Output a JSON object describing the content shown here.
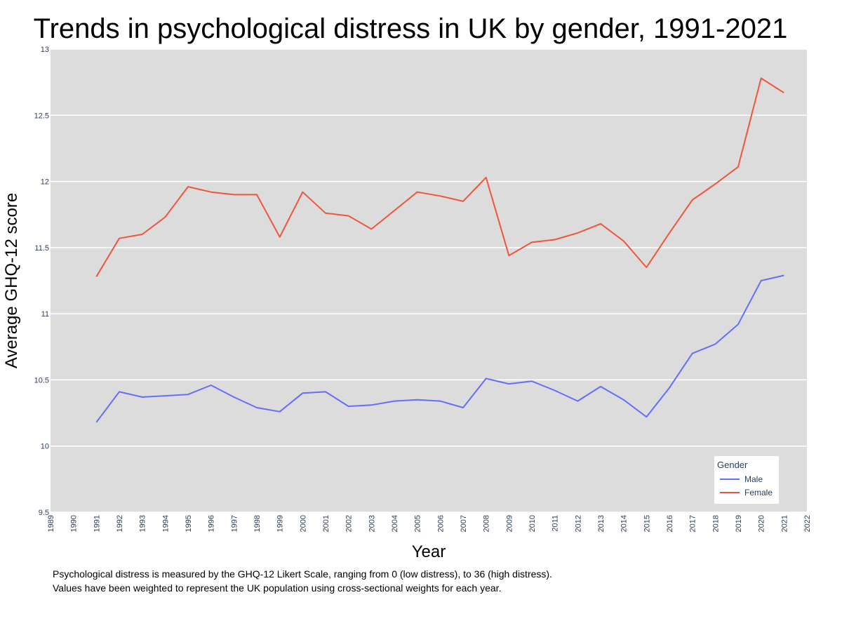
{
  "chart_data": {
    "type": "line",
    "title": "Trends in psychological distress in UK by gender, 1991-2021",
    "xlabel": "Year",
    "ylabel": "Average GHQ-12 score",
    "xlim": [
      1989,
      2022
    ],
    "ylim": [
      9.5,
      13
    ],
    "x_ticks": [
      "1989",
      "1990",
      "1991",
      "1992",
      "1993",
      "1994",
      "1995",
      "1996",
      "1997",
      "1998",
      "1999",
      "2000",
      "2001",
      "2002",
      "2003",
      "2004",
      "2005",
      "2006",
      "2007",
      "2008",
      "2009",
      "2010",
      "2011",
      "2012",
      "2013",
      "2014",
      "2015",
      "2016",
      "2017",
      "2018",
      "2019",
      "2020",
      "2021",
      "2022"
    ],
    "y_ticks": [
      "9.5",
      "10",
      "10.5",
      "11",
      "11.5",
      "12",
      "12.5",
      "13"
    ],
    "grid": true,
    "legend": {
      "title": "Gender",
      "placement": "bottom-right"
    },
    "background_color": "#dcdcdc",
    "series": [
      {
        "name": "Male",
        "color": "#636efa",
        "x": [
          1991,
          1992,
          1993,
          1994,
          1995,
          1996,
          1997,
          1998,
          1999,
          2000,
          2001,
          2002,
          2003,
          2004,
          2005,
          2006,
          2007,
          2008,
          2009,
          2010,
          2011,
          2012,
          2013,
          2014,
          2015,
          2016,
          2017,
          2018,
          2019,
          2020,
          2021
        ],
        "values": [
          10.18,
          10.41,
          10.37,
          10.38,
          10.39,
          10.46,
          10.37,
          10.29,
          10.26,
          10.4,
          10.41,
          10.3,
          10.31,
          10.34,
          10.35,
          10.34,
          10.29,
          10.51,
          10.47,
          10.49,
          10.42,
          10.34,
          10.45,
          10.35,
          10.22,
          10.44,
          10.7,
          10.77,
          10.92,
          11.25,
          11.29
        ]
      },
      {
        "name": "Female",
        "color": "#ef553b",
        "x": [
          1991,
          1992,
          1993,
          1994,
          1995,
          1996,
          1997,
          1998,
          1999,
          2000,
          2001,
          2002,
          2003,
          2004,
          2005,
          2006,
          2007,
          2008,
          2009,
          2010,
          2011,
          2012,
          2013,
          2014,
          2015,
          2016,
          2017,
          2018,
          2019,
          2020,
          2021
        ],
        "values": [
          11.28,
          11.57,
          11.6,
          11.73,
          11.96,
          11.92,
          11.9,
          11.9,
          11.58,
          11.92,
          11.76,
          11.74,
          11.64,
          11.78,
          11.92,
          11.89,
          11.85,
          12.03,
          11.44,
          11.54,
          11.56,
          11.61,
          11.68,
          11.55,
          11.35,
          11.61,
          11.86,
          11.98,
          12.11,
          12.78,
          12.67
        ]
      }
    ]
  },
  "captions": [
    "Psychological distress is measured by the GHQ-12 Likert Scale, ranging from 0 (low distress), to 36 (high distress).",
    "Values have been weighted to represent the UK population using cross-sectional weights for each year."
  ]
}
